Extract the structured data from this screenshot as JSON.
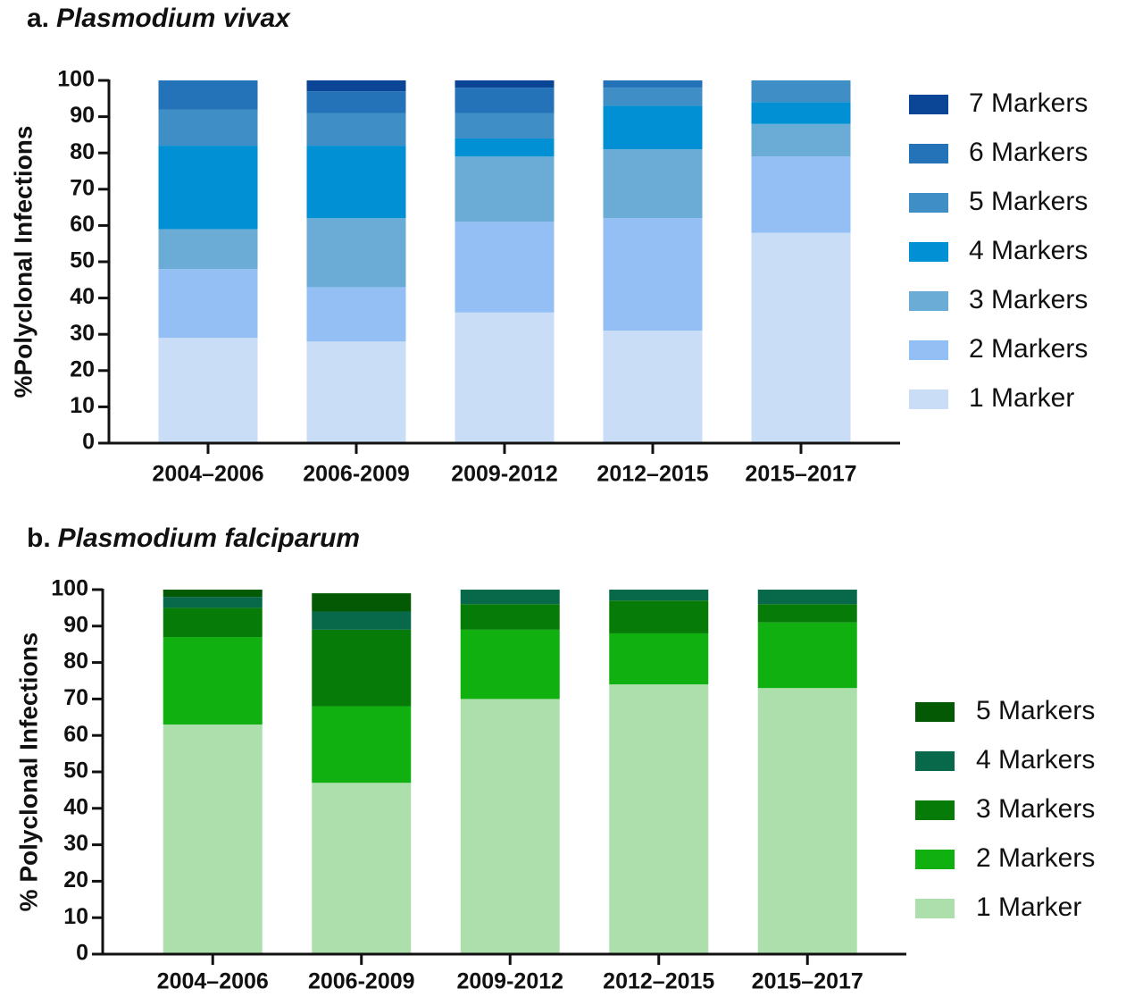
{
  "chart_data": [
    {
      "type": "bar",
      "stacked": true,
      "panel": "a.",
      "title": "Plasmodium vivax",
      "y_label": "%Polyclonal Infections",
      "categories": [
        "2004–2006",
        "2006-2009",
        "2009-2012",
        "2012–2015",
        "2015–2017"
      ],
      "series": [
        {
          "name": "1 Marker",
          "color": "#c9ddf6",
          "values": [
            29,
            28,
            36,
            31,
            58
          ]
        },
        {
          "name": "2 Markers",
          "color": "#94bff5",
          "values": [
            19,
            15,
            25,
            31,
            21
          ]
        },
        {
          "name": "3 Markers",
          "color": "#6aacd6",
          "values": [
            11,
            19,
            18,
            19,
            9
          ]
        },
        {
          "name": "4 Markers",
          "color": "#0190d4",
          "values": [
            23,
            20,
            5,
            12,
            6
          ]
        },
        {
          "name": "5 Markers",
          "color": "#3f8ec6",
          "values": [
            10,
            9,
            7,
            5,
            6
          ]
        },
        {
          "name": "6 Markers",
          "color": "#2473b8",
          "values": [
            8,
            6,
            7,
            2,
            0
          ]
        },
        {
          "name": "7 Markers",
          "color": "#0a4596",
          "values": [
            0,
            3,
            2,
            0,
            0
          ]
        }
      ],
      "ylim": [
        0,
        100
      ],
      "yticks": [
        0,
        10,
        20,
        30,
        40,
        50,
        60,
        70,
        80,
        90,
        100
      ],
      "legend": "right"
    },
    {
      "type": "bar",
      "stacked": true,
      "panel": "b.",
      "title": "Plasmodium falciparum",
      "y_label": "% Polyclonal Infections",
      "categories": [
        "2004–2006",
        "2006-2009",
        "2009-2012",
        "2012–2015",
        "2015–2017"
      ],
      "series": [
        {
          "name": "1 Marker",
          "color": "#addfac",
          "values": [
            63,
            47,
            70,
            74,
            73
          ]
        },
        {
          "name": "2 Markers",
          "color": "#10b010",
          "values": [
            24,
            21,
            19,
            14,
            18
          ]
        },
        {
          "name": "3 Markers",
          "color": "#077b07",
          "values": [
            8,
            21,
            7,
            9,
            5
          ]
        },
        {
          "name": "4 Markers",
          "color": "#07694a",
          "values": [
            3,
            5,
            4,
            3,
            4
          ]
        },
        {
          "name": "5 Markers",
          "color": "#045904",
          "values": [
            2,
            5,
            0,
            0,
            0
          ]
        }
      ],
      "ylim": [
        0,
        100
      ],
      "yticks": [
        0,
        10,
        20,
        30,
        40,
        50,
        60,
        70,
        80,
        90,
        100
      ],
      "legend": "right"
    }
  ]
}
